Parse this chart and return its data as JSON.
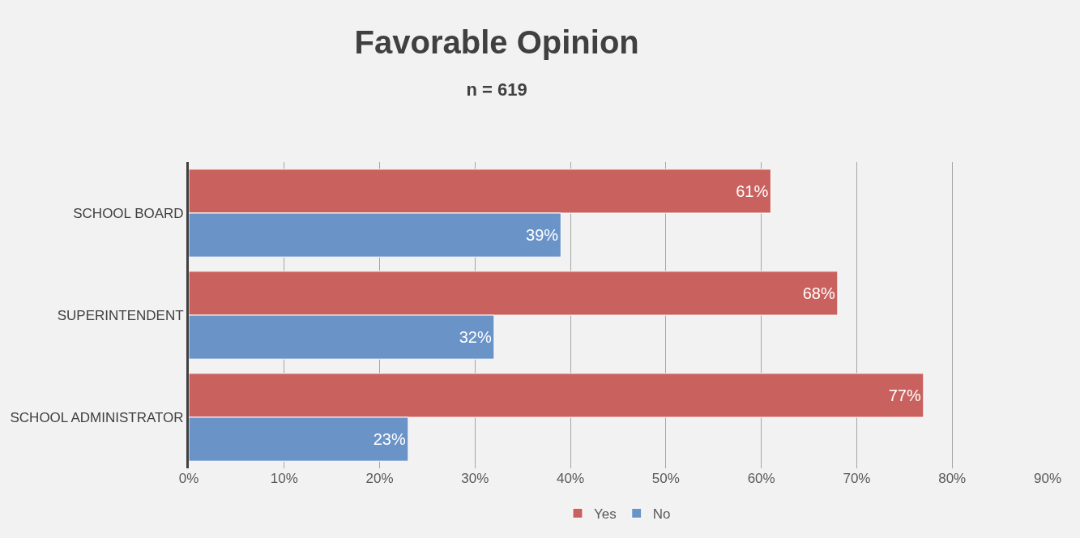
{
  "chart_data": {
    "type": "bar",
    "orientation": "horizontal",
    "title": "Favorable Opinion",
    "subtitle": "n = 619",
    "categories": [
      "SCHOOL BOARD",
      "SUPERINTENDENT",
      "SCHOOL ADMINISTRATOR"
    ],
    "series": [
      {
        "name": "Yes",
        "color": "#c9625f",
        "values": [
          61,
          68,
          77
        ],
        "value_labels": [
          "61%",
          "68%",
          "77%"
        ]
      },
      {
        "name": "No",
        "color": "#6a93c8",
        "values": [
          39,
          32,
          23
        ],
        "value_labels": [
          "39%",
          "32%",
          "23%"
        ]
      }
    ],
    "xlim": [
      0,
      90
    ],
    "xticks": [
      {
        "value": 0,
        "label": "0%"
      },
      {
        "value": 10,
        "label": "10%"
      },
      {
        "value": 20,
        "label": "20%"
      },
      {
        "value": 30,
        "label": "30%"
      },
      {
        "value": 40,
        "label": "40%"
      },
      {
        "value": 50,
        "label": "50%"
      },
      {
        "value": 60,
        "label": "60%"
      },
      {
        "value": 70,
        "label": "70%"
      },
      {
        "value": 80,
        "label": "80%"
      },
      {
        "value": 90,
        "label": "90%"
      }
    ],
    "grid": "x",
    "legend": "bottom"
  }
}
